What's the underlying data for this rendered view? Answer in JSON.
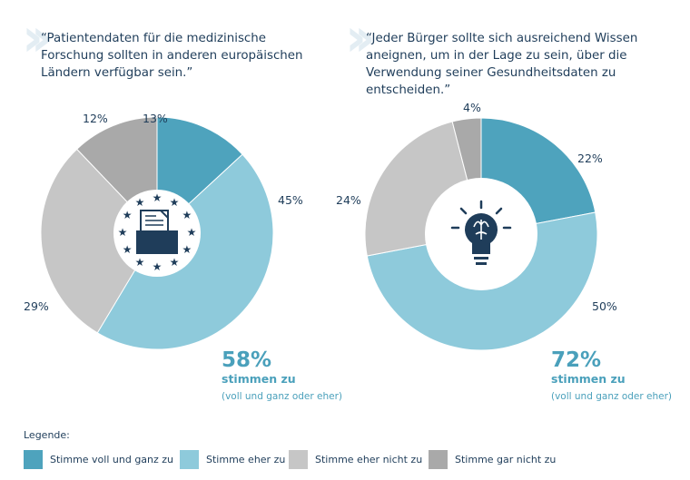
{
  "colors": {
    "voll": "#4ea3bd",
    "eher": "#8ecadb",
    "eher_nicht": "#c6c6c6",
    "gar_nicht": "#a9a9a9",
    "accent": "#4aa0bb"
  },
  "chart_data": [
    {
      "type": "pie",
      "donut": true,
      "title": "“Patientendaten für die medizinische Forschung sollten in anderen europäischen Ländern verfügbar sein.”",
      "categories": [
        "Stimme voll und ganz zu",
        "Stimme eher zu",
        "Stimme eher nicht zu",
        "Stimme gar nicht zu"
      ],
      "values": [
        13,
        45,
        29,
        12
      ],
      "value_labels": [
        "13%",
        "45%",
        "29%",
        "12%"
      ],
      "summary": {
        "value": "58%",
        "label": "stimmen zu",
        "note": "(voll und ganz oder eher)"
      },
      "center_icon": "eu-stars-folder-document-icon"
    },
    {
      "type": "pie",
      "donut": true,
      "title": "“Jeder Bürger sollte sich ausreichend Wissen aneignen, um in der Lage zu sein, über die Verwendung seiner Gesundheitsdaten zu entscheiden.”",
      "categories": [
        "Stimme voll und ganz zu",
        "Stimme eher zu",
        "Stimme eher nicht zu",
        "Stimme gar nicht zu"
      ],
      "values": [
        22,
        50,
        24,
        4
      ],
      "value_labels": [
        "22%",
        "50%",
        "24%",
        "4%"
      ],
      "summary": {
        "value": "72%",
        "label": "stimmen zu",
        "note": "(voll und ganz oder eher)"
      },
      "center_icon": "lightbulb-brain-icon"
    }
  ],
  "legend": {
    "title": "Legende:",
    "items": [
      "Stimme voll und ganz zu",
      "Stimme eher zu",
      "Stimme eher nicht zu",
      "Stimme gar nicht zu"
    ]
  }
}
